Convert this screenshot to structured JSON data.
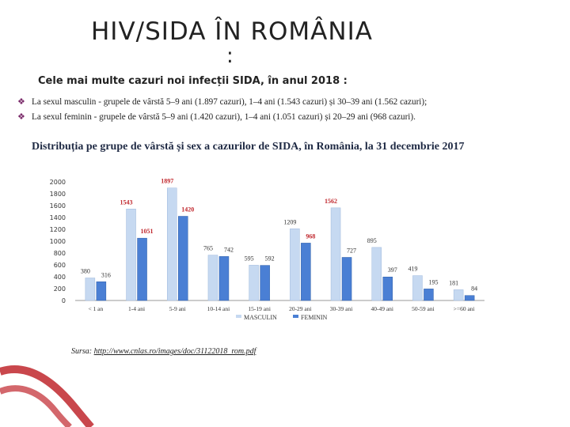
{
  "header": {
    "title": "HIV/SIDA ÎN ROMÂNIA",
    "title_colon": ":",
    "subtitle": "Cele mai multe cazuri noi infecții SIDA, în anul 2018 :"
  },
  "bullets": [
    "La sexul masculin - grupele de vârstă 5–9 ani (1.897 cazuri), 1–4 ani (1.543 cazuri) și 30–39 ani (1.562 cazuri);",
    "La sexul feminin - grupele de vârstă 5–9 ani (1.420 cazuri), 1–4 ani (1.051 cazuri) și 20–29 ani (968 cazuri)."
  ],
  "chart_data": {
    "type": "bar",
    "title": "Distribuția pe grupe de vârstă și sex a cazurilor de SIDA, în România, la 31 decembrie 2017",
    "categories": [
      "< 1 an",
      "1-4 ani",
      "5-9 ani",
      "10-14 ani",
      "15-19 ani",
      "20-29 ani",
      "30-39 ani",
      "40-49 ani",
      "50-59 ani",
      ">=60 ani"
    ],
    "series": [
      {
        "name": "MASCULIN",
        "color": "#c6d9f1",
        "values": [
          380,
          1543,
          1897,
          765,
          595,
          1209,
          1562,
          895,
          419,
          181
        ]
      },
      {
        "name": "FEMININ",
        "color": "#4a7fd4",
        "values": [
          316,
          1051,
          1420,
          742,
          592,
          968,
          727,
          397,
          195,
          84
        ]
      }
    ],
    "ylim": [
      0,
      2000
    ],
    "yticks": [
      0,
      200,
      400,
      600,
      800,
      1000,
      1200,
      1400,
      1600,
      1800,
      2000
    ],
    "grid": false,
    "legend": "bottom",
    "highlight_color": "#c0272d"
  },
  "source": {
    "label": "Sursa:",
    "url": "http://www.cnlas.ro/images/doc/31122018_rom.pdf"
  },
  "colors": {
    "ribbon": "#c0272d",
    "bullet": "#7a2a6a"
  }
}
